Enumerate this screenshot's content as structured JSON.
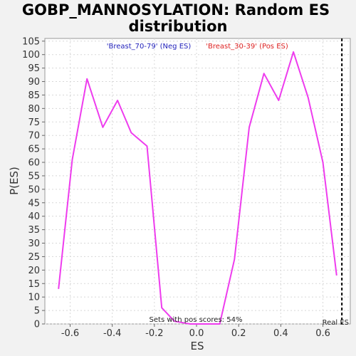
{
  "chart_data": {
    "type": "line",
    "title_lines": [
      "GOBP_MANNOSYLATION: Random ES",
      "distribution"
    ],
    "xlabel": "ES",
    "ylabel": "P(ES)",
    "xlim": [
      -0.72,
      0.73
    ],
    "ylim": [
      0,
      106
    ],
    "x_ticks": [
      -0.6,
      -0.4,
      -0.2,
      0.0,
      0.2,
      0.4,
      0.6
    ],
    "x_tick_labels": [
      "-0.6",
      "-0.4",
      "-0.2",
      "0.0",
      "0.2",
      "0.4",
      "0.6"
    ],
    "y_ticks": [
      0,
      5,
      10,
      15,
      20,
      25,
      30,
      35,
      40,
      45,
      50,
      55,
      60,
      65,
      70,
      75,
      80,
      85,
      90,
      95,
      100,
      105
    ],
    "grid": true,
    "series": [
      {
        "color": "#ee3cee",
        "x": [
          -0.655,
          -0.59,
          -0.52,
          -0.445,
          -0.375,
          -0.31,
          -0.235,
          -0.165,
          -0.105,
          -0.03,
          0.04,
          0.11,
          0.18,
          0.25,
          0.32,
          0.39,
          0.46,
          0.53,
          0.6,
          0.665
        ],
        "y": [
          13,
          61,
          91,
          73,
          83,
          71,
          66,
          6,
          1,
          0,
          0,
          0,
          24,
          73,
          93,
          83,
          101,
          84,
          60,
          18
        ]
      }
    ],
    "real_es": {
      "x": 0.69,
      "label": "Real ES"
    },
    "annotations": {
      "neg_label": "'Breast_70-79' (Neg ES)",
      "neg_color": "#2222bb",
      "pos_label": "'Breast_30-39' (Pos ES)",
      "pos_color": "#dd2222",
      "pos_scores_text": "Sets with pos scores: 54%"
    }
  }
}
